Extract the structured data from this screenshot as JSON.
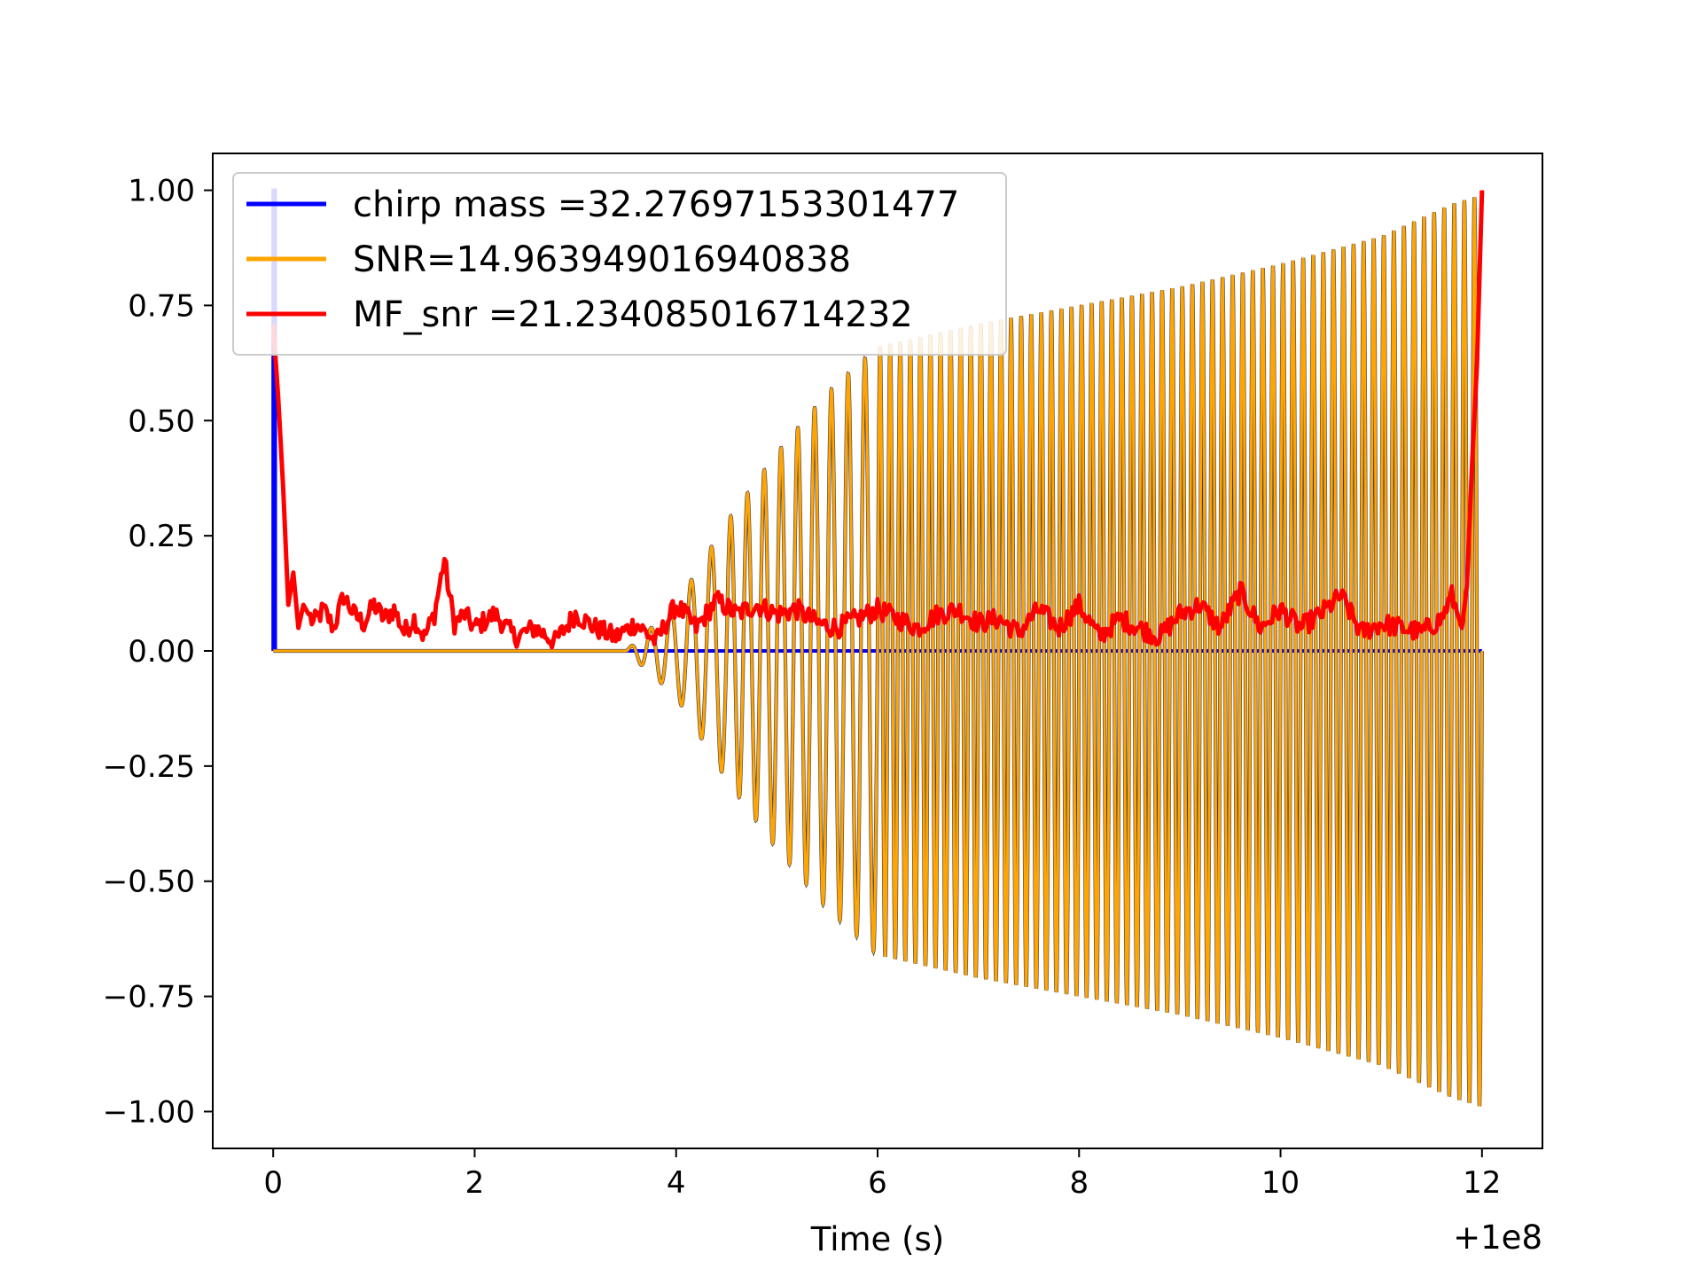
{
  "chart_data": {
    "type": "line",
    "title": "",
    "xlabel": "Time (s)",
    "ylabel": "",
    "x_offset_label": "+1e8",
    "xlim": [
      -0.6,
      12.6
    ],
    "ylim": [
      -1.08,
      1.08
    ],
    "x_ticks": [
      0,
      2,
      4,
      6,
      8,
      10,
      12
    ],
    "x_tick_labels": [
      "0",
      "2",
      "4",
      "6",
      "8",
      "10",
      "12"
    ],
    "y_ticks": [
      1.0,
      0.75,
      0.5,
      0.25,
      0.0,
      -0.25,
      -0.5,
      -0.75,
      -1.0
    ],
    "y_tick_labels": [
      "1.00",
      "0.75",
      "0.50",
      "0.25",
      "0.00",
      "−0.25",
      "−0.50",
      "−0.75",
      "−1.00"
    ],
    "grid": false,
    "legend_position": "top-left",
    "series": [
      {
        "name": "chirp mass =32.27697153301477",
        "color": "#0000ff",
        "x": [
          0.0,
          0.0,
          0.02,
          0.02,
          12.0
        ],
        "y": [
          0.0,
          1.0,
          1.0,
          0.0,
          0.0
        ]
      },
      {
        "name": "SNR=14.963949016940838",
        "color": "#ffa500",
        "description_values": {
          "signal_start": 3.5,
          "end": 12.0,
          "envelope_x": [
            0,
            3.5,
            4.0,
            4.5,
            5.0,
            5.5,
            6.0,
            7.0,
            8.0,
            9.0,
            10.0,
            11.0,
            11.7,
            12.0
          ],
          "envelope_y": [
            0,
            0.0,
            0.1,
            0.28,
            0.43,
            0.56,
            0.66,
            0.71,
            0.75,
            0.79,
            0.84,
            0.9,
            0.97,
            0.99
          ],
          "cycles_first_4_5": 5,
          "cycles_4_5_to_6": 9,
          "cycles_6_to_12": 60
        }
      },
      {
        "name": "MF_snr =21.234085016714232",
        "color": "#ff0000",
        "x": [
          0.0,
          0.05,
          0.1,
          0.15,
          0.2,
          0.25,
          0.3,
          0.4,
          0.5,
          0.6,
          0.7,
          0.8,
          0.9,
          1.0,
          1.1,
          1.2,
          1.3,
          1.4,
          1.5,
          1.6,
          1.7,
          1.75,
          1.8,
          1.9,
          2.0,
          2.2,
          2.4,
          2.6,
          2.8,
          3.0,
          3.2,
          3.4,
          3.6,
          3.8,
          4.0,
          4.2,
          4.4,
          4.6,
          4.8,
          5.0,
          5.2,
          5.4,
          5.6,
          5.8,
          6.0,
          6.2,
          6.4,
          6.6,
          6.8,
          7.0,
          7.2,
          7.4,
          7.6,
          7.8,
          8.0,
          8.2,
          8.4,
          8.6,
          8.8,
          9.0,
          9.2,
          9.4,
          9.6,
          9.8,
          10.0,
          10.2,
          10.4,
          10.6,
          10.8,
          11.0,
          11.2,
          11.4,
          11.6,
          11.7,
          11.8,
          11.85,
          11.9,
          11.95,
          12.0
        ],
        "y": [
          0.71,
          0.55,
          0.35,
          0.1,
          0.17,
          0.05,
          0.1,
          0.06,
          0.09,
          0.05,
          0.12,
          0.08,
          0.06,
          0.1,
          0.07,
          0.09,
          0.04,
          0.07,
          0.03,
          0.08,
          0.2,
          0.12,
          0.06,
          0.08,
          0.05,
          0.08,
          0.03,
          0.05,
          0.02,
          0.08,
          0.05,
          0.03,
          0.06,
          0.02,
          0.1,
          0.05,
          0.11,
          0.08,
          0.1,
          0.08,
          0.09,
          0.06,
          0.05,
          0.07,
          0.09,
          0.07,
          0.05,
          0.08,
          0.09,
          0.06,
          0.07,
          0.04,
          0.09,
          0.05,
          0.1,
          0.03,
          0.07,
          0.05,
          0.03,
          0.08,
          0.1,
          0.05,
          0.13,
          0.05,
          0.09,
          0.05,
          0.08,
          0.12,
          0.04,
          0.06,
          0.05,
          0.04,
          0.07,
          0.12,
          0.05,
          0.14,
          0.4,
          0.62,
          1.0
        ]
      }
    ]
  }
}
